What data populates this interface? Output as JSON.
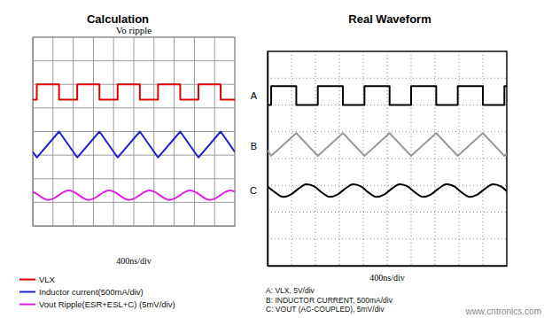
{
  "chart_data": [
    {
      "type": "line",
      "title": "Calculation",
      "subtitle": "Vo ripple",
      "xlabel": "400ns/div",
      "xlim": [
        0,
        4000
      ],
      "ylim": [
        0,
        8
      ],
      "xticks": [
        0,
        400,
        800,
        1200,
        1600,
        2000,
        2400,
        2800,
        3200,
        3600,
        4000
      ],
      "yticks": [
        0,
        1,
        2,
        3,
        4,
        5,
        6,
        7,
        8
      ],
      "grid": true,
      "tick_labels": false,
      "series": [
        {
          "name": "VLX",
          "color": "#e00000",
          "x": [
            0,
            80,
            80,
            520,
            520,
            880,
            880,
            1320,
            1320,
            1680,
            1680,
            2120,
            2120,
            2480,
            2480,
            2920,
            2920,
            3280,
            3280,
            3720,
            3720,
            4000
          ],
          "values": [
            5.35,
            5.35,
            6.0,
            6.0,
            5.35,
            5.35,
            6.0,
            6.0,
            5.35,
            5.35,
            6.0,
            6.0,
            5.35,
            5.35,
            6.0,
            6.0,
            5.35,
            5.35,
            6.0,
            6.0,
            5.35,
            5.35
          ]
        },
        {
          "name": "Inductor current(500mA/div)",
          "color": "#1f1fd0",
          "x": [
            0,
            80,
            520,
            880,
            1320,
            1680,
            2120,
            2480,
            2920,
            3280,
            3720,
            4000
          ],
          "values": [
            3.14,
            2.9,
            4.0,
            2.9,
            4.0,
            2.9,
            4.0,
            2.9,
            4.0,
            2.9,
            4.0,
            3.14
          ]
        },
        {
          "name": "Vout Ripple(ESR+ESL+C) (5mV/div)",
          "color": "#e020e0",
          "line_style": "smooth",
          "x": [
            0,
            100,
            200,
            300,
            400,
            500,
            600,
            700,
            800,
            900,
            1000,
            1100,
            1200,
            1300,
            1400,
            1500,
            1600,
            1700,
            1800,
            1900,
            2000,
            2100,
            2200,
            2300,
            2400,
            2500,
            2600,
            2700,
            2800,
            2900,
            3000,
            3100,
            3200,
            3300,
            3400,
            3500,
            3600,
            3700,
            3800,
            3900,
            4000
          ],
          "values": [
            1.45,
            1.33,
            1.18,
            1.1,
            1.15,
            1.28,
            1.42,
            1.5,
            1.45,
            1.33,
            1.18,
            1.1,
            1.15,
            1.28,
            1.42,
            1.5,
            1.45,
            1.33,
            1.18,
            1.1,
            1.15,
            1.28,
            1.42,
            1.5,
            1.45,
            1.33,
            1.18,
            1.1,
            1.15,
            1.28,
            1.42,
            1.5,
            1.45,
            1.33,
            1.18,
            1.1,
            1.15,
            1.28,
            1.42,
            1.5,
            1.45
          ]
        }
      ]
    },
    {
      "type": "line",
      "title": "Real Waveform",
      "xlabel": "400ns/div",
      "xlim": [
        0,
        4000
      ],
      "ylim": [
        0,
        8
      ],
      "xticks": [
        0,
        400,
        800,
        1200,
        1600,
        2000,
        2400,
        2800,
        3200,
        3600,
        4000
      ],
      "yticks": [
        0,
        1,
        2,
        3,
        4,
        5,
        6,
        7,
        8
      ],
      "grid": true,
      "tick_labels": false,
      "annotation": "www.cntronics.com",
      "series": [
        {
          "label": "A",
          "name": "A: VLX, 5V/div",
          "color": "#000000",
          "x": [
            0,
            60,
            60,
            480,
            480,
            840,
            840,
            1260,
            1260,
            1620,
            1620,
            2040,
            2040,
            2400,
            2400,
            2820,
            2820,
            3180,
            3180,
            3600,
            3600,
            3960,
            3960,
            4000
          ],
          "values": [
            6.0,
            6.0,
            6.7,
            6.7,
            6.0,
            6.0,
            6.7,
            6.7,
            6.0,
            6.0,
            6.7,
            6.7,
            6.0,
            6.0,
            6.7,
            6.7,
            6.0,
            6.0,
            6.7,
            6.7,
            6.0,
            6.0,
            6.7,
            6.7
          ]
        },
        {
          "label": "B",
          "name": "B: INDUCTOR CURRENT, 500mA/div",
          "color": "#999999",
          "x": [
            0,
            60,
            480,
            840,
            1260,
            1620,
            2040,
            2400,
            2820,
            3180,
            3600,
            3960,
            4000
          ],
          "values": [
            4.31,
            4.1,
            4.95,
            4.1,
            4.95,
            4.1,
            4.95,
            4.1,
            4.95,
            4.1,
            4.95,
            4.1,
            4.18
          ]
        },
        {
          "label": "C",
          "name": "C: VOUT (AC-COUPLED), 5mV/div",
          "color": "#000000",
          "line_style": "smooth",
          "x": [
            0,
            130,
            260,
            390,
            520,
            650,
            780,
            910,
            1040,
            1170,
            1300,
            1430,
            1560,
            1690,
            1820,
            1950,
            2080,
            2210,
            2340,
            2470,
            2600,
            2730,
            2860,
            2990,
            3120,
            3250,
            3380,
            3510,
            3640,
            3770,
            3900,
            4000
          ],
          "values": [
            2.96,
            2.73,
            2.57,
            2.66,
            2.88,
            3.04,
            2.96,
            2.73,
            2.57,
            2.66,
            2.88,
            3.04,
            2.96,
            2.73,
            2.57,
            2.66,
            2.88,
            3.04,
            2.96,
            2.73,
            2.57,
            2.66,
            2.88,
            3.04,
            2.96,
            2.73,
            2.57,
            2.66,
            2.88,
            3.04,
            2.96,
            2.78
          ]
        }
      ]
    }
  ]
}
